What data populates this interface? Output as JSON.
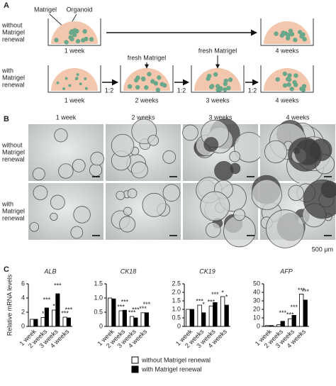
{
  "panel_a": {
    "label": "A",
    "matrigel": "Matrigel",
    "organoid": "Organoid",
    "row1_label": [
      "without",
      "Matrigel",
      "renewal"
    ],
    "row1_start": "1 week",
    "row1_end": "4 weeks",
    "row2_label": [
      "with",
      "Matrigel",
      "renewal"
    ],
    "row2_steps": [
      "1 week",
      "2 weeks",
      "3 weeks",
      "4 weeks"
    ],
    "split": "1:2",
    "fresh": "fresh Matrigel"
  },
  "panel_b": {
    "label": "B",
    "columns": [
      "1 week",
      "2 weeks",
      "3 weeks",
      "4 weeks"
    ],
    "rows": [
      [
        "without",
        "Matrigel",
        "renewal"
      ],
      [
        "with",
        "Matrigel",
        "renewal"
      ]
    ],
    "scale": "500 μm"
  },
  "panel_c": {
    "label": "C"
  },
  "chart_data": [
    {
      "type": "bar",
      "title": "ALB",
      "y_label": "Relative mRNA levels",
      "categories": [
        "1 week",
        "2 weeks",
        "3 weeks",
        "4 weeks"
      ],
      "ylim": [
        0,
        6
      ],
      "yticks": [
        0,
        2,
        4,
        6
      ],
      "series": [
        {
          "name": "without Matrigel renewal",
          "color": "#ffffff",
          "values": [
            1.0,
            1.25,
            2.3,
            1.3
          ],
          "significance": [
            null,
            "*",
            "*",
            "***"
          ]
        },
        {
          "name": "with Matrigel renewal",
          "color": "#000000",
          "values": [
            1.0,
            2.6,
            4.6,
            1.2
          ],
          "significance": [
            null,
            "***",
            "***",
            "***"
          ]
        }
      ]
    },
    {
      "type": "bar",
      "title": "CK18",
      "categories": [
        "1 week",
        "2 weeks",
        "3 weeks",
        "4 weeks"
      ],
      "ylim": [
        0,
        1.5
      ],
      "yticks": [
        0,
        0.5,
        {
          "value": 1,
          "label": "1.0"
        },
        1.5
      ],
      "series": [
        {
          "color": "#ffffff",
          "values": [
            1.0,
            0.55,
            0.35,
            0.48
          ],
          "significance": [
            null,
            "***",
            "***",
            "***"
          ]
        },
        {
          "color": "#000000",
          "values": [
            0.97,
            0.57,
            0.3,
            0.48
          ],
          "significance": [
            null,
            "***",
            "***",
            "***"
          ]
        }
      ]
    },
    {
      "type": "bar",
      "title": "CK19",
      "categories": [
        "1 week",
        "2 weeks",
        "3 weeks",
        "4 weeks"
      ],
      "ylim": [
        0,
        2.5
      ],
      "yticks": [
        0,
        0.5,
        {
          "value": 1,
          "label": "1.0"
        },
        1.5,
        {
          "value": 2,
          "label": "2.0"
        },
        2.5
      ],
      "series": [
        {
          "color": "#ffffff",
          "values": [
            1.0,
            1.25,
            1.2,
            1.75
          ],
          "significance": [
            null,
            "***",
            "***",
            "*"
          ]
        },
        {
          "color": "#000000",
          "values": [
            1.0,
            0.8,
            1.4,
            1.25
          ],
          "significance": [
            null,
            "*",
            "***",
            "*"
          ]
        }
      ]
    },
    {
      "type": "bar",
      "title": "AFP",
      "categories": [
        "1 week",
        "2 weeks",
        "3 weeks",
        "4 weeks"
      ],
      "ylim": [
        0,
        50
      ],
      "yticks": [
        0,
        10,
        20,
        30,
        40,
        50
      ],
      "series": [
        {
          "color": "#ffffff",
          "values": [
            1,
            2,
            9,
            38
          ],
          "significance": [
            null,
            null,
            "***",
            "***"
          ]
        },
        {
          "color": "#000000",
          "values": [
            1,
            6,
            13,
            31
          ],
          "significance": [
            null,
            "***",
            "***",
            "***"
          ]
        }
      ]
    }
  ]
}
